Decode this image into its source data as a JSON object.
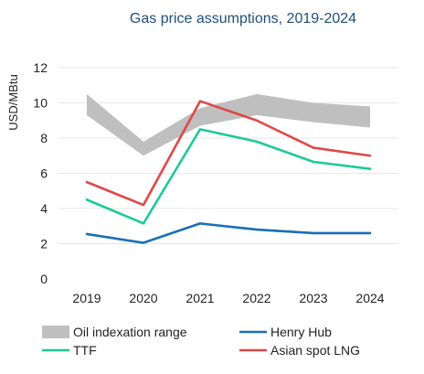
{
  "chart_data": {
    "type": "line",
    "title": "Gas price assumptions, 2019-2024",
    "xlabel": "",
    "ylabel": "USD/MBtu",
    "categories": [
      "2019",
      "2020",
      "2021",
      "2022",
      "2023",
      "2024"
    ],
    "ylim": [
      0,
      12
    ],
    "yticks": [
      0,
      2,
      4,
      6,
      8,
      10,
      12
    ],
    "grid": "horizontal",
    "legend_position": "bottom",
    "band": {
      "name": "Oil indexation range",
      "color": "#bfbfbf",
      "low": [
        9.3,
        7.0,
        8.7,
        9.3,
        8.9,
        8.6
      ],
      "high": [
        10.5,
        7.8,
        9.7,
        10.5,
        10.0,
        9.8
      ]
    },
    "series": [
      {
        "name": "Henry Hub",
        "color": "#1a6fb5",
        "values": [
          2.55,
          2.05,
          3.15,
          2.8,
          2.6,
          2.6
        ]
      },
      {
        "name": "TTF",
        "color": "#1ec99a",
        "values": [
          4.5,
          3.15,
          8.5,
          7.8,
          6.65,
          6.25
        ]
      },
      {
        "name": "Asian spot LNG",
        "color": "#e04848",
        "values": [
          5.5,
          4.2,
          10.1,
          9.0,
          7.45,
          7.0
        ]
      }
    ]
  }
}
